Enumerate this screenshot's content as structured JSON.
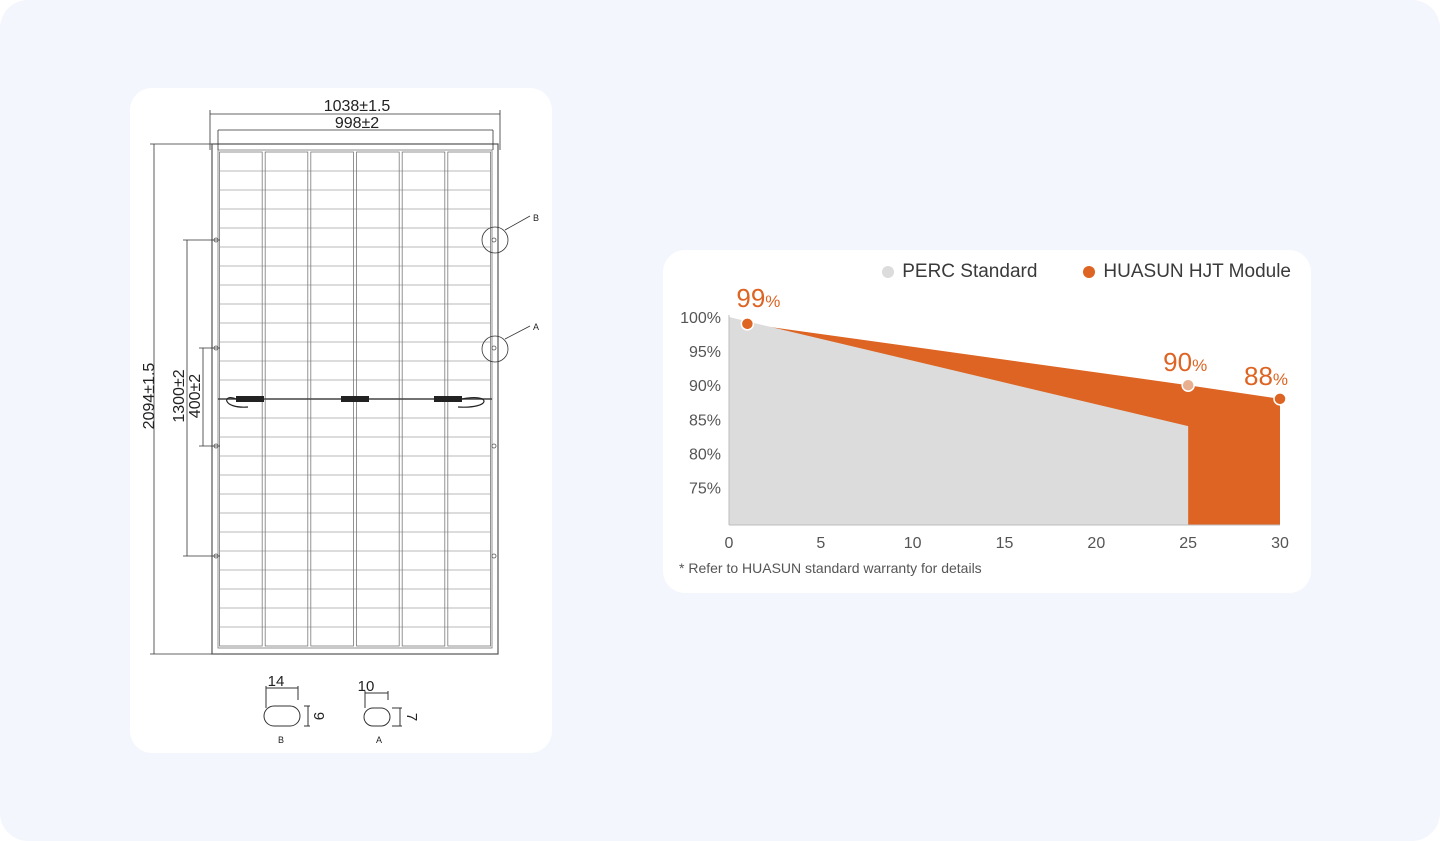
{
  "drawing": {
    "outer_width": "1038±1.5",
    "inner_width": "998±2",
    "height": "2094±1.5",
    "hole_pitch_outer": "1300±2",
    "hole_pitch_inner": "400±2",
    "callout_b": "B",
    "callout_a": "A",
    "detail_b": {
      "width": "14",
      "height": "9",
      "label": "B"
    },
    "detail_a": {
      "width": "10",
      "height": "7",
      "label": "A"
    }
  },
  "legend": {
    "perc": {
      "label": "PERC Standard",
      "color": "#dcdcdc"
    },
    "hjt": {
      "label": "HUASUN HJT Module",
      "color": "#dd6422"
    }
  },
  "footnote": "* Refer to HUASUN standard warranty for details",
  "chart_data": {
    "type": "area",
    "x_ticks": [
      "0",
      "5",
      "10",
      "15",
      "20",
      "25",
      "30"
    ],
    "y_ticks": [
      "100%",
      "95%",
      "90%",
      "85%",
      "80%",
      "75%"
    ],
    "xlim": [
      0,
      30
    ],
    "ylim": [
      69.5,
      100
    ],
    "series": [
      {
        "name": "PERC Standard",
        "color": "#dcdcdc",
        "x": [
          0,
          25,
          25
        ],
        "y": [
          100,
          84,
          69.5
        ]
      },
      {
        "name": "HUASUN HJT Module",
        "color": "#dd6422",
        "x": [
          0,
          1,
          25,
          30,
          30
        ],
        "y": [
          100,
          99,
          90,
          88,
          69.5
        ]
      }
    ],
    "annotations": [
      {
        "x": 1,
        "y": 99,
        "value": "99",
        "unit": "%"
      },
      {
        "x": 25,
        "y": 90,
        "value": "90",
        "unit": "%"
      },
      {
        "x": 30,
        "y": 88,
        "value": "88",
        "unit": "%"
      }
    ]
  }
}
